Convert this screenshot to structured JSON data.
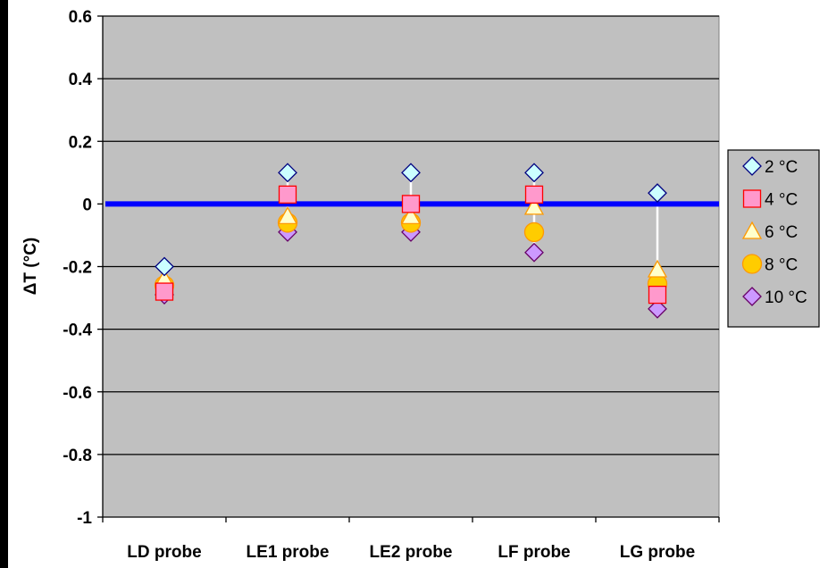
{
  "chart_data": {
    "type": "scatter",
    "title": "",
    "xlabel": "",
    "ylabel": "ΔT (°C)",
    "categories": [
      "LD probe",
      "LE1 probe",
      "LE2 probe",
      "LF probe",
      "LG probe"
    ],
    "ylim": [
      -1,
      0.6
    ],
    "yticks": [
      "0.6",
      "0.4",
      "0.2",
      "0",
      "-0.2",
      "-0.4",
      "-0.6",
      "-0.8",
      "-1"
    ],
    "ytick_values": [
      0.6,
      0.4,
      0.2,
      0,
      -0.2,
      -0.4,
      -0.6,
      -0.8,
      -1
    ],
    "grid": true,
    "plot_background": "#C0C0C0",
    "reference_line": {
      "y": 0,
      "color": "#0000FF"
    },
    "legend_position": "right",
    "series": [
      {
        "name": "2 °C",
        "marker": "diamond",
        "fill": "#CCFFFF",
        "stroke": "#000080",
        "values": [
          -0.2,
          0.1,
          0.1,
          0.1,
          0.035
        ]
      },
      {
        "name": "4 °C",
        "marker": "square",
        "fill": "#FF99CC",
        "stroke": "#FF0000",
        "values": [
          -0.28,
          0.03,
          0.0,
          0.03,
          -0.29
        ]
      },
      {
        "name": "6 °C",
        "marker": "triangle",
        "fill": "#FFFFCC",
        "stroke": "#FF9900",
        "values": [
          -0.24,
          -0.04,
          -0.04,
          -0.01,
          -0.21
        ]
      },
      {
        "name": "8 °C",
        "marker": "circle",
        "fill": "#FFCC00",
        "stroke": "#FF9900",
        "values": [
          -0.26,
          -0.06,
          -0.06,
          -0.09,
          -0.255
        ]
      },
      {
        "name": "10 °C",
        "marker": "diamond",
        "fill": "#CC99FF",
        "stroke": "#660066",
        "values": [
          -0.29,
          -0.09,
          -0.09,
          -0.155,
          -0.335
        ]
      }
    ]
  }
}
